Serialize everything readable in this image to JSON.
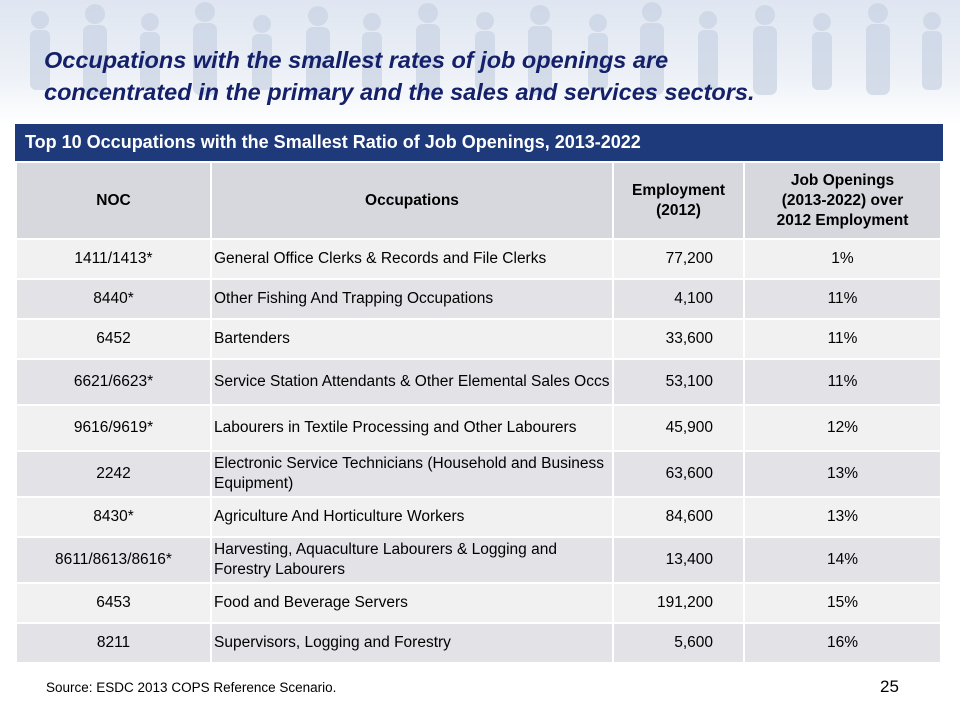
{
  "headline": {
    "line1": "Occupations with the smallest rates of job openings are",
    "line2": "concentrated in the primary and the sales and services sectors."
  },
  "table": {
    "title": "Top 10 Occupations with the Smallest Ratio of Job Openings, 2013-2022",
    "headers": {
      "noc": "NOC",
      "occupations": "Occupations",
      "employment_line1": "Employment",
      "employment_line2": "(2012)",
      "ratio_line1": "Job Openings",
      "ratio_line2": "(2013-2022) over",
      "ratio_line3": "2012 Employment"
    },
    "rows": [
      {
        "noc": "1411/1413*",
        "occupation": "General Office Clerks & Records and File Clerks",
        "employment": "77,200",
        "ratio": "1%"
      },
      {
        "noc": "8440*",
        "occupation": "Other Fishing And Trapping Occupations",
        "employment": "4,100",
        "ratio": "11%"
      },
      {
        "noc": "6452",
        "occupation": "Bartenders",
        "employment": "33,600",
        "ratio": "11%"
      },
      {
        "noc": "6621/6623*",
        "occupation": "Service Station Attendants & Other Elemental Sales Occs",
        "employment": "53,100",
        "ratio": "11%"
      },
      {
        "noc": "9616/9619*",
        "occupation": "Labourers in Textile Processing and Other Labourers",
        "employment": "45,900",
        "ratio": "12%"
      },
      {
        "noc": "2242",
        "occupation": "Electronic Service Technicians (Household and Business Equipment)",
        "employment": "63,600",
        "ratio": "13%"
      },
      {
        "noc": "8430*",
        "occupation": "Agriculture And Horticulture Workers",
        "employment": "84,600",
        "ratio": "13%"
      },
      {
        "noc": "8611/8613/8616*",
        "occupation": "Harvesting, Aquaculture Labourers & Logging and Forestry Labourers",
        "employment": "13,400",
        "ratio": "14%"
      },
      {
        "noc": "6453",
        "occupation": "Food and Beverage Servers",
        "employment": "191,200",
        "ratio": "15%"
      },
      {
        "noc": "8211",
        "occupation": "Supervisors, Logging and Forestry",
        "employment": "5,600",
        "ratio": "16%"
      }
    ]
  },
  "footer": {
    "source": "Source: ESDC 2013 COPS Reference Scenario.",
    "page_number": "25"
  },
  "colors": {
    "headline": "#14206a",
    "banner": "#1e3a7b",
    "header_cell": "#d7d7de",
    "row_light": "#f1f1f1",
    "row_dark": "#e2e2e7"
  }
}
